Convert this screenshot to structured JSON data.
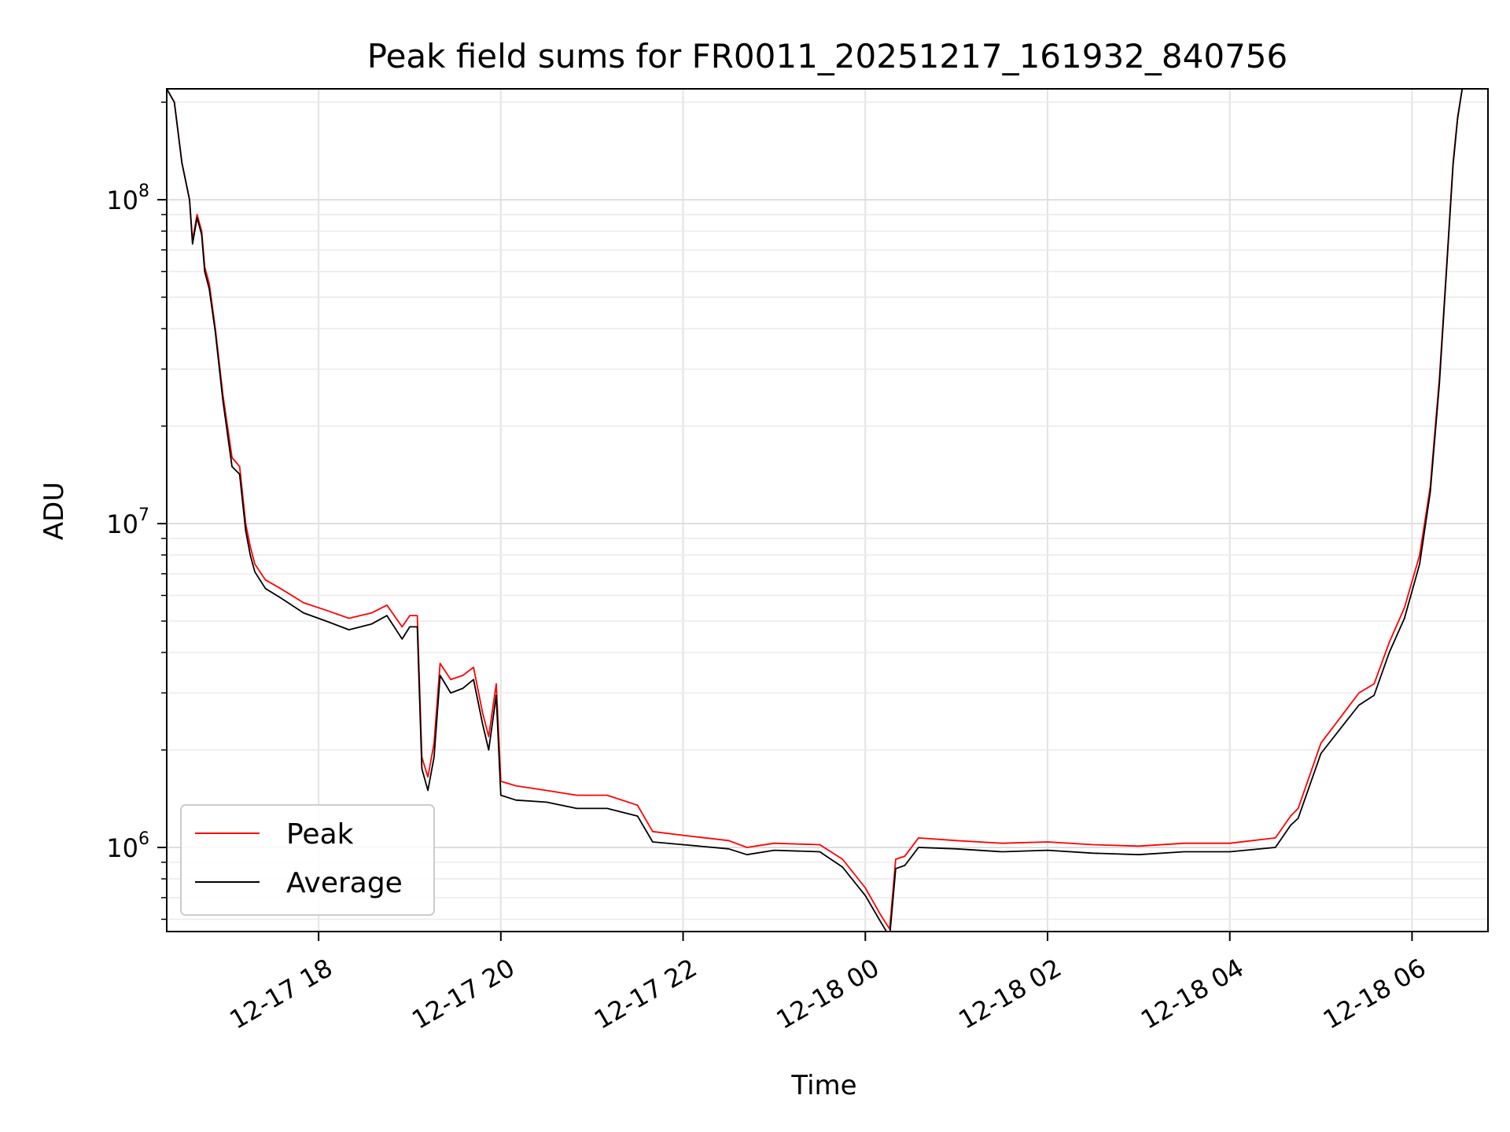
{
  "chart_data": {
    "type": "line",
    "title": "Peak field sums for FR0011_20251217_161932_840756",
    "xlabel": "Time",
    "ylabel": "ADU",
    "yscale": "log",
    "xlim": [
      "2025-12-17T16:20",
      "2025-12-18T06:50"
    ],
    "ylim": [
      550000,
      220000000
    ],
    "grid": true,
    "legend": {
      "placement": "lower-left"
    },
    "x_ticks": [
      {
        "t": "2025-12-17T18:00",
        "label": "12-17 18"
      },
      {
        "t": "2025-12-17T20:00",
        "label": "12-17 20"
      },
      {
        "t": "2025-12-17T22:00",
        "label": "12-17 22"
      },
      {
        "t": "2025-12-18T00:00",
        "label": "12-18 00"
      },
      {
        "t": "2025-12-18T02:00",
        "label": "12-18 02"
      },
      {
        "t": "2025-12-18T04:00",
        "label": "12-18 04"
      },
      {
        "t": "2025-12-18T06:00",
        "label": "12-18 06"
      }
    ],
    "y_ticks": [
      {
        "value": 1000000,
        "base": "10",
        "exp": "6"
      },
      {
        "value": 10000000,
        "base": "10",
        "exp": "7"
      },
      {
        "value": 100000000,
        "base": "10",
        "exp": "8"
      }
    ],
    "x": [
      "2025-12-17T16:20",
      "2025-12-17T16:25",
      "2025-12-17T16:30",
      "2025-12-17T16:35",
      "2025-12-17T16:37",
      "2025-12-17T16:40",
      "2025-12-17T16:43",
      "2025-12-17T16:45",
      "2025-12-17T16:48",
      "2025-12-17T16:52",
      "2025-12-17T16:57",
      "2025-12-17T17:03",
      "2025-12-17T17:08",
      "2025-12-17T17:12",
      "2025-12-17T17:15",
      "2025-12-17T17:18",
      "2025-12-17T17:25",
      "2025-12-17T17:35",
      "2025-12-17T17:50",
      "2025-12-17T18:05",
      "2025-12-17T18:20",
      "2025-12-17T18:35",
      "2025-12-17T18:45",
      "2025-12-17T18:55",
      "2025-12-17T19:00",
      "2025-12-17T19:05",
      "2025-12-17T19:08",
      "2025-12-17T19:12",
      "2025-12-17T19:16",
      "2025-12-17T19:20",
      "2025-12-17T19:27",
      "2025-12-17T19:35",
      "2025-12-17T19:42",
      "2025-12-17T19:48",
      "2025-12-17T19:52",
      "2025-12-17T19:57",
      "2025-12-17T20:00",
      "2025-12-17T20:10",
      "2025-12-17T20:30",
      "2025-12-17T20:50",
      "2025-12-17T21:10",
      "2025-12-17T21:30",
      "2025-12-17T21:40",
      "2025-12-17T22:00",
      "2025-12-17T22:30",
      "2025-12-17T22:42",
      "2025-12-17T23:00",
      "2025-12-17T23:30",
      "2025-12-17T23:45",
      "2025-12-18T00:00",
      "2025-12-18T00:10",
      "2025-12-18T00:16",
      "2025-12-18T00:20",
      "2025-12-18T00:26",
      "2025-12-18T00:35",
      "2025-12-18T01:00",
      "2025-12-18T01:30",
      "2025-12-18T02:00",
      "2025-12-18T02:30",
      "2025-12-18T03:00",
      "2025-12-18T03:30",
      "2025-12-18T04:00",
      "2025-12-18T04:30",
      "2025-12-18T04:40",
      "2025-12-18T04:45",
      "2025-12-18T05:00",
      "2025-12-18T05:15",
      "2025-12-18T05:25",
      "2025-12-18T05:35",
      "2025-12-18T05:45",
      "2025-12-18T05:55",
      "2025-12-18T06:05",
      "2025-12-18T06:12",
      "2025-12-18T06:18",
      "2025-12-18T06:23",
      "2025-12-18T06:27",
      "2025-12-18T06:30",
      "2025-12-18T06:33"
    ],
    "series": [
      {
        "name": "Peak",
        "color": "#ff0000",
        "values": [
          220000000,
          200000000,
          130000000,
          100000000,
          75000000,
          90000000,
          80000000,
          62000000,
          55000000,
          40000000,
          25000000,
          16000000,
          15000000,
          10000000,
          8500000,
          7500000,
          6700000,
          6300000,
          5700000,
          5400000,
          5100000,
          5300000,
          5600000,
          4800000,
          5200000,
          5200000,
          1900000,
          1650000,
          2100000,
          3700000,
          3300000,
          3400000,
          3600000,
          2600000,
          2200000,
          3200000,
          1600000,
          1550000,
          1500000,
          1450000,
          1450000,
          1350000,
          1120000,
          1090000,
          1050000,
          1000000,
          1030000,
          1020000,
          920000,
          750000,
          620000,
          560000,
          920000,
          940000,
          1070000,
          1050000,
          1030000,
          1040000,
          1020000,
          1010000,
          1030000,
          1030000,
          1070000,
          1250000,
          1320000,
          2100000,
          2600000,
          3000000,
          3200000,
          4300000,
          5500000,
          8000000,
          13000000,
          28000000,
          65000000,
          130000000,
          180000000,
          220000000
        ]
      },
      {
        "name": "Average",
        "color": "#000000",
        "values": [
          220000000,
          200000000,
          130000000,
          100000000,
          73000000,
          88000000,
          78000000,
          60000000,
          53000000,
          39000000,
          24000000,
          15000000,
          14200000,
          9500000,
          8000000,
          7100000,
          6300000,
          5900000,
          5300000,
          5000000,
          4700000,
          4900000,
          5200000,
          4400000,
          4800000,
          4800000,
          1750000,
          1500000,
          1900000,
          3400000,
          3000000,
          3100000,
          3300000,
          2400000,
          2000000,
          2950000,
          1450000,
          1400000,
          1380000,
          1320000,
          1320000,
          1250000,
          1040000,
          1020000,
          990000,
          950000,
          980000,
          970000,
          870000,
          710000,
          590000,
          530000,
          860000,
          880000,
          1000000,
          990000,
          970000,
          980000,
          960000,
          950000,
          970000,
          970000,
          1000000,
          1170000,
          1230000,
          1950000,
          2400000,
          2750000,
          2950000,
          4000000,
          5100000,
          7500000,
          12500000,
          27000000,
          64000000,
          128000000,
          178000000,
          220000000
        ]
      }
    ]
  }
}
